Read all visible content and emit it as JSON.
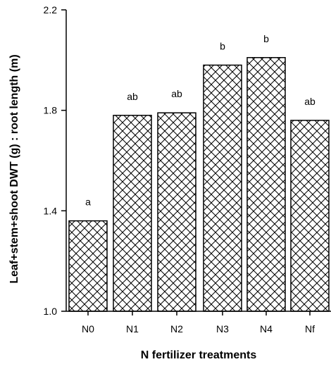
{
  "chart_data": {
    "type": "bar",
    "categories": [
      "N0",
      "N1",
      "N2",
      "N3",
      "N4",
      "Nf"
    ],
    "values": [
      1.36,
      1.78,
      1.79,
      1.98,
      2.01,
      1.76
    ],
    "significance_letters": [
      "a",
      "ab",
      "ab",
      "b",
      "b",
      "ab"
    ],
    "xlabel": "N fertilizer treatments",
    "ylabel": "Leaf+stem+shoot DWT (g) : root length (m)",
    "ylim": [
      1.0,
      2.2
    ],
    "yticks": [
      1.0,
      1.4,
      1.8,
      2.2
    ],
    "ytick_labels": [
      "1.0",
      "1.4",
      "1.8",
      "2.2"
    ],
    "bar_fill": "crosshatch",
    "bar_color": "#000000",
    "grid": false,
    "legend": "none"
  }
}
